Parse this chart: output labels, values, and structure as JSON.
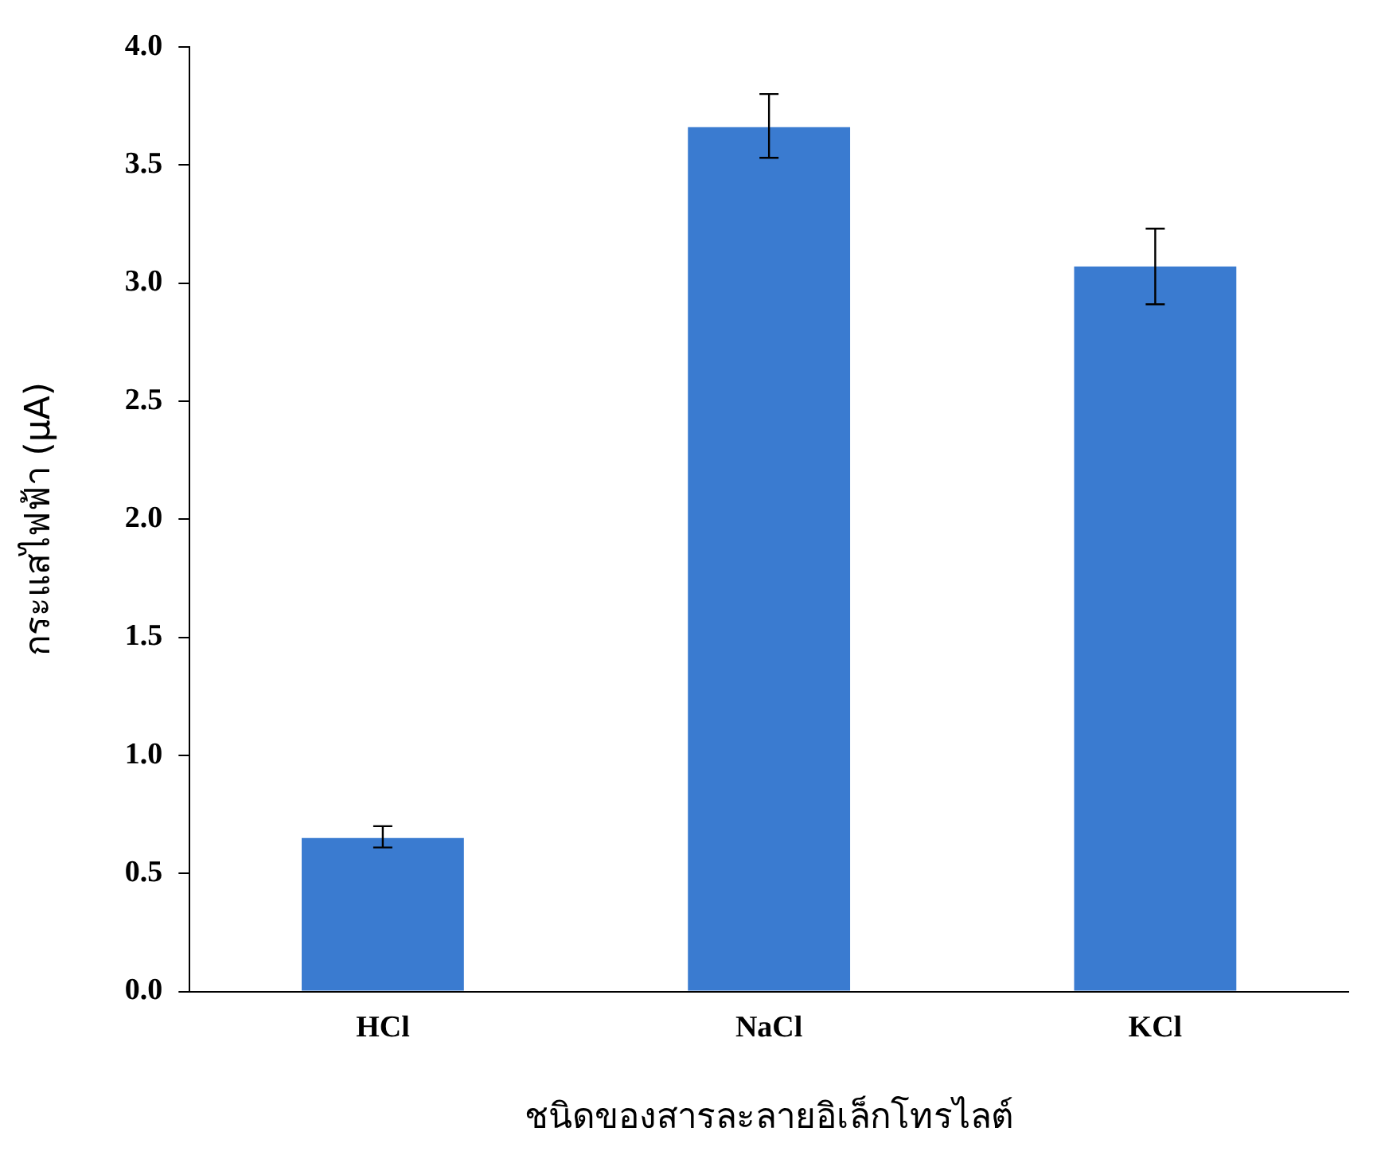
{
  "chart_data": {
    "type": "bar",
    "xlabel": "ชนิดของสารละลายอิเล็กโทรไลต์",
    "ylabel": "กระแสไฟฟ้า (μA)",
    "categories": [
      "HCl",
      "NaCl",
      "KCl"
    ],
    "values": [
      0.65,
      3.66,
      3.07
    ],
    "errors": [
      [
        0.61,
        0.7
      ],
      [
        3.53,
        3.8
      ],
      [
        2.91,
        3.23
      ]
    ],
    "color": "#3a7bd0",
    "ylim": [
      0,
      4
    ],
    "yticks": [
      {
        "value": 0,
        "label": "0.0"
      },
      {
        "value": 0.5,
        "label": "0.5"
      },
      {
        "value": 1,
        "label": "1.0"
      },
      {
        "value": 1.5,
        "label": "1.5"
      },
      {
        "value": 2,
        "label": "2.0"
      },
      {
        "value": 2.5,
        "label": "2.5"
      },
      {
        "value": 3,
        "label": "3.0"
      },
      {
        "value": 3.5,
        "label": "3.5"
      },
      {
        "value": 4,
        "label": "4.0"
      }
    ],
    "grid": false,
    "legend": false
  }
}
